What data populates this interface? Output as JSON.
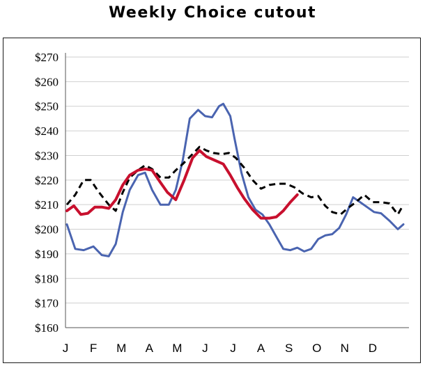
{
  "chart_data": {
    "type": "line",
    "title": "Weekly Choice cutout",
    "xlabel": "",
    "ylabel": "",
    "ylim": [
      160,
      270
    ],
    "y_ticks": [
      "$160",
      "$170",
      "$180",
      "$190",
      "$200",
      "$210",
      "$220",
      "$230",
      "$240",
      "$250",
      "$260",
      "$270"
    ],
    "y_tick_values": [
      160,
      170,
      180,
      190,
      200,
      210,
      220,
      230,
      240,
      250,
      260,
      270
    ],
    "categories": [
      "J",
      "F",
      "M",
      "A",
      "M",
      "J",
      "J",
      "A",
      "S",
      "O",
      "N",
      "D"
    ],
    "x_range": [
      0,
      12.3
    ],
    "grid": true,
    "legend": "none",
    "series": [
      {
        "color": "#4a64b0",
        "style": "solid",
        "x": [
          0.05,
          0.35,
          0.65,
          1.0,
          1.3,
          1.55,
          1.8,
          2.05,
          2.3,
          2.6,
          2.85,
          3.1,
          3.4,
          3.7,
          3.95,
          4.2,
          4.45,
          4.75,
          5.0,
          5.25,
          5.5,
          5.65,
          5.9,
          6.05,
          6.3,
          6.55,
          6.8,
          7.05,
          7.3,
          7.55,
          7.8,
          8.05,
          8.3,
          8.55,
          8.8,
          9.05,
          9.3,
          9.55,
          9.8,
          10.05,
          10.3,
          10.55,
          10.8,
          11.05,
          11.3,
          11.6,
          11.9,
          12.1
        ],
        "y": [
          202,
          192,
          191.5,
          193,
          189.5,
          189,
          194,
          207,
          216,
          222,
          223,
          216,
          210,
          210,
          216,
          228,
          245,
          248.5,
          246,
          245.5,
          250,
          251,
          246,
          237,
          223,
          213,
          208,
          206,
          202,
          197,
          192,
          191.5,
          192.5,
          191,
          192,
          196,
          197.5,
          198,
          200.5,
          206,
          213,
          211,
          209,
          207,
          206.5,
          203.5,
          200,
          202
        ]
      },
      {
        "color": "#000000",
        "style": "dashed",
        "x": [
          0.05,
          0.35,
          0.65,
          0.9,
          1.2,
          1.55,
          1.8,
          2.05,
          2.3,
          2.6,
          2.85,
          3.1,
          3.4,
          3.7,
          3.95,
          4.2,
          4.5,
          4.8,
          5.05,
          5.3,
          5.6,
          5.85,
          6.1,
          6.4,
          6.7,
          7.0,
          7.3,
          7.6,
          7.9,
          8.2,
          8.5,
          8.8,
          9.05,
          9.3,
          9.55,
          9.85,
          10.1,
          10.4,
          10.7,
          11.0,
          11.3,
          11.6,
          11.9,
          12.1
        ],
        "y": [
          210,
          214,
          220,
          220,
          215,
          210,
          207.5,
          215,
          221,
          224,
          226,
          224.5,
          221,
          221,
          224,
          226.5,
          230,
          233.5,
          232,
          231,
          230.5,
          231,
          229,
          225,
          220,
          216.5,
          218,
          218.5,
          218.5,
          217,
          214.5,
          213,
          213.5,
          209.5,
          207,
          206,
          208.5,
          211,
          214,
          211,
          211,
          210.5,
          206,
          210
        ]
      },
      {
        "color": "#c8102e",
        "style": "solid",
        "x": [
          0.05,
          0.3,
          0.55,
          0.8,
          1.05,
          1.3,
          1.55,
          1.8,
          2.05,
          2.3,
          2.6,
          2.85,
          3.1,
          3.4,
          3.65,
          3.95,
          4.25,
          4.55,
          4.8,
          5.05,
          5.35,
          5.65,
          5.9,
          6.15,
          6.4,
          6.7,
          7.0,
          7.3,
          7.55,
          7.8,
          8.05,
          8.3
        ],
        "y": [
          207.5,
          209.5,
          206,
          206.5,
          209,
          209,
          208.5,
          212,
          218,
          222,
          224,
          224.5,
          224,
          219,
          215,
          212,
          220,
          229,
          232,
          229.5,
          228,
          226.5,
          222,
          217,
          212.5,
          208,
          204.5,
          204.5,
          205,
          207.5,
          211,
          214
        ]
      }
    ]
  }
}
